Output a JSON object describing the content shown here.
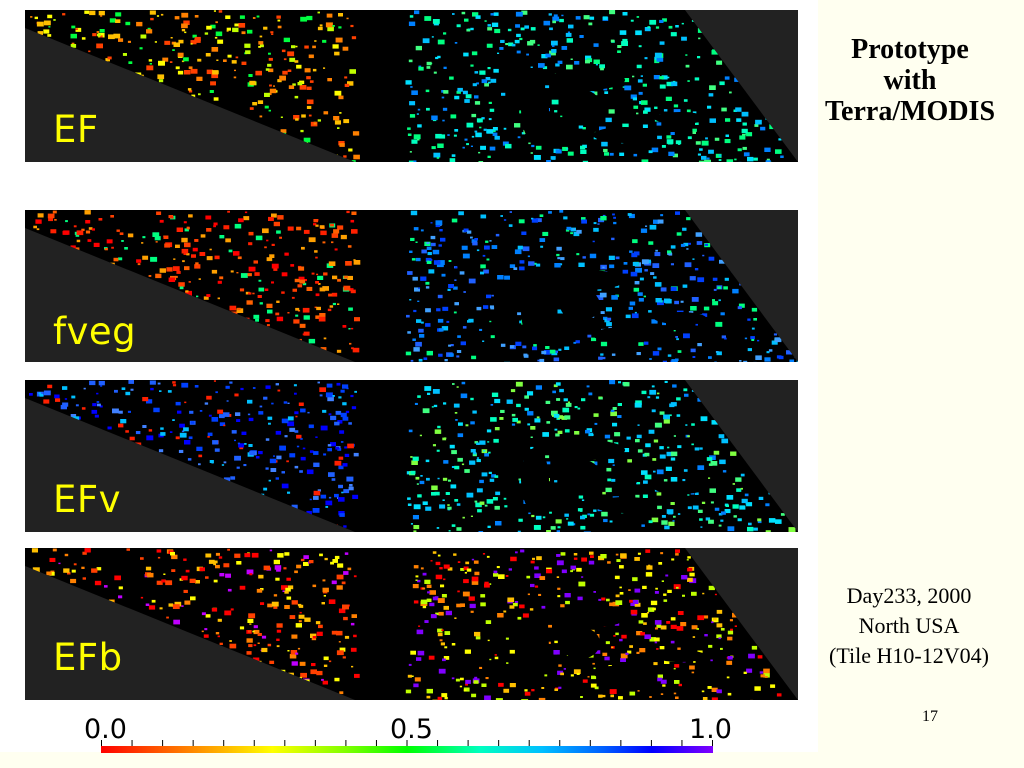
{
  "title": {
    "line1": "Prototype",
    "line2": "with",
    "line3": "Terra/MODIS"
  },
  "info": {
    "line1": "Day233, 2000",
    "line2": "North USA",
    "line3": "(Tile H10-12V04)"
  },
  "page_number": "17",
  "panels": [
    {
      "label": "EF",
      "palette": "mixed"
    },
    {
      "label": "fveg",
      "palette": "redblue"
    },
    {
      "label": "EFv",
      "palette": "cool"
    },
    {
      "label": "EFb",
      "palette": "warm"
    }
  ],
  "colorbar": {
    "min_label": "0.0",
    "mid_label": "0.5",
    "max_label": "1.0",
    "colors": [
      "#ff0000",
      "#ff8000",
      "#ffff00",
      "#80ff00",
      "#00ff00",
      "#00ffc0",
      "#00c0ff",
      "#0060ff",
      "#0000ff",
      "#8000ff"
    ]
  }
}
